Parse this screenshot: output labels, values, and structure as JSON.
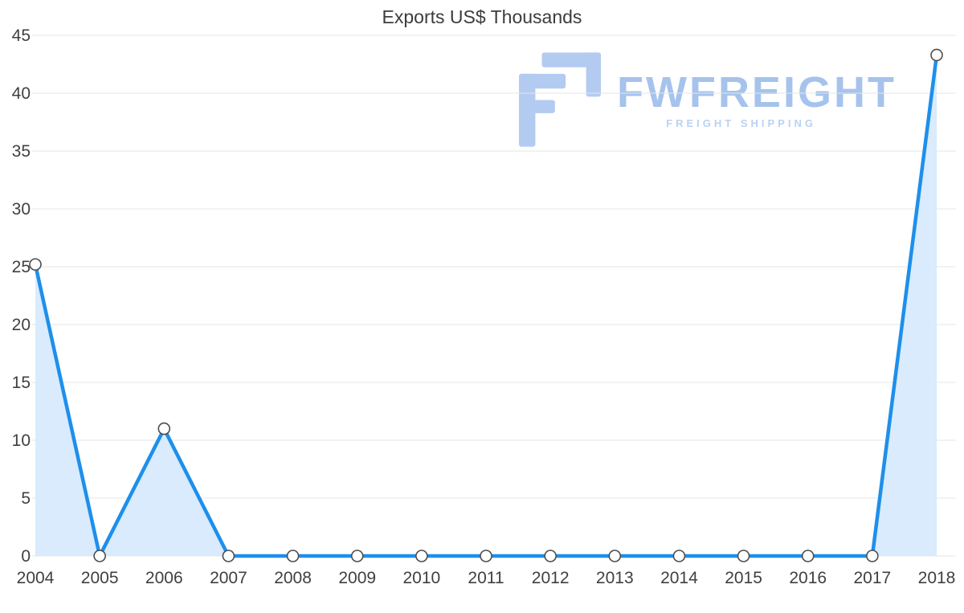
{
  "chart_data": {
    "type": "area",
    "title": "Exports US$ Thousands",
    "categories": [
      "2004",
      "2005",
      "2006",
      "2007",
      "2008",
      "2009",
      "2010",
      "2011",
      "2012",
      "2013",
      "2014",
      "2015",
      "2016",
      "2017",
      "2018"
    ],
    "values": [
      25.2,
      0,
      11,
      0,
      0,
      0,
      0,
      0,
      0,
      0,
      0,
      0,
      0,
      0,
      43.3
    ],
    "xlabel": "",
    "ylabel": "",
    "ylim": [
      0,
      45
    ],
    "ytick_step": 5,
    "grid": "horizontal",
    "legend": "none",
    "line_color": "#1e8feb",
    "area_color": "#d9ebfc",
    "grid_color": "#e6e6e6",
    "axis_label_color": "#404040",
    "title_color": "#3c3c3c",
    "marker": {
      "shape": "circle",
      "fill": "#ffffff",
      "stroke": "#4d4d4d"
    }
  },
  "watermark": {
    "brand": "FWFREIGHT",
    "tagline": "FREIGHT SHIPPING",
    "brand_color": "#a5c3ec",
    "tagline_color": "#b9d2f3",
    "logo_color": "#b4cbf1"
  }
}
